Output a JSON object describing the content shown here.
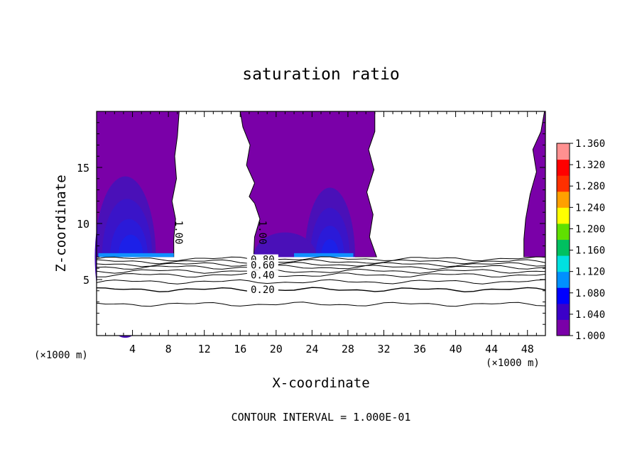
{
  "chart_data": {
    "type": "heatmap",
    "title": "saturation ratio",
    "xlabel": "X-coordinate",
    "ylabel": "Z-coordinate",
    "x_unit_left": "(×1000 m)",
    "x_unit_right": "(×1000 m)",
    "footer": "CONTOUR INTERVAL = 1.000E-01",
    "xlim": [
      0,
      50
    ],
    "ylim": [
      0,
      20
    ],
    "x_ticks": [
      4,
      8,
      12,
      16,
      20,
      24,
      28,
      32,
      36,
      40,
      44,
      48
    ],
    "y_ticks": [
      5,
      10,
      15
    ],
    "colorbar": {
      "min": 1.0,
      "max": 1.36,
      "ticks": [
        "1.360",
        "1.320",
        "1.280",
        "1.240",
        "1.200",
        "1.160",
        "1.120",
        "1.080",
        "1.040",
        "1.000"
      ],
      "colors": [
        "#7a00a8",
        "#3b00c8",
        "#0000ff",
        "#0090ff",
        "#00e0e0",
        "#00c060",
        "#60e000",
        "#ffff00",
        "#ffa000",
        "#ff3000",
        "#ff0000",
        "#ff9090"
      ]
    },
    "supersaturated_regions": [
      {
        "x_range": [
          0,
          8.6
        ],
        "z_range": [
          7.0,
          20.0
        ],
        "max_ratio": 1.06
      },
      {
        "x_range": [
          17.5,
          31.2
        ],
        "z_range": [
          7.0,
          20.0
        ],
        "max_ratio": 1.07
      },
      {
        "x_range": [
          47.5,
          50
        ],
        "z_range": [
          7.0,
          20.0
        ],
        "max_ratio": 1.0
      }
    ],
    "contour_lines": [
      {
        "value": 1.0,
        "label": "1.00",
        "label_x": 8.8,
        "label_z": 9.2
      },
      {
        "value": 1.0,
        "label": "1.00",
        "label_x": 18.1,
        "label_z": 9.2
      },
      {
        "value": 0.8,
        "label": "0.80",
        "z": 6.8
      },
      {
        "value": 0.6,
        "label": "0.60",
        "z": 6.3
      },
      {
        "value": 0.4,
        "label": "0.40",
        "z": 5.4
      },
      {
        "value": 0.2,
        "label": "0.20",
        "z": 4.1
      }
    ]
  }
}
